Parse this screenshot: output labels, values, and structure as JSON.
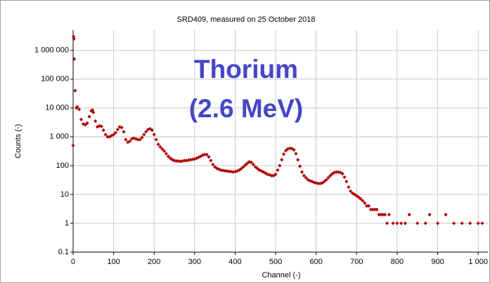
{
  "chart_data": {
    "type": "scatter",
    "title": "SRD409, measured on 25 October 2018",
    "x_label": "Channel (-)",
    "y_label": "Counts (-)",
    "annotations": [
      "Thorium",
      "(2.6 MeV)"
    ],
    "color": "#b00000",
    "yscale": "log",
    "grid": true,
    "xlim": [
      0,
      1024
    ],
    "ylim": [
      0.1,
      5000000
    ],
    "xticks": [
      0,
      100,
      200,
      300,
      400,
      500,
      600,
      700,
      800,
      900,
      {
        "value": 1000,
        "label": "1 000"
      }
    ],
    "yticks": [
      0.1,
      1,
      10,
      100,
      {
        "value": 1000,
        "label": "1 000"
      },
      {
        "value": 10000,
        "label": "10 000"
      },
      {
        "value": 100000,
        "label": "100 000"
      },
      {
        "value": 1000000,
        "label": "1 000 000"
      }
    ],
    "x": [
      0,
      1,
      2,
      3,
      5,
      8,
      10,
      15,
      20,
      25,
      30,
      35,
      40,
      45,
      48,
      50,
      55,
      60,
      65,
      70,
      75,
      80,
      85,
      90,
      95,
      100,
      105,
      110,
      115,
      120,
      125,
      130,
      135,
      140,
      145,
      150,
      155,
      160,
      165,
      170,
      175,
      180,
      185,
      190,
      195,
      200,
      205,
      210,
      215,
      220,
      225,
      230,
      235,
      240,
      245,
      250,
      255,
      260,
      265,
      270,
      275,
      280,
      285,
      290,
      295,
      300,
      305,
      310,
      315,
      320,
      325,
      330,
      335,
      340,
      345,
      350,
      355,
      360,
      365,
      370,
      375,
      380,
      385,
      390,
      395,
      400,
      405,
      410,
      415,
      420,
      425,
      430,
      435,
      440,
      445,
      450,
      455,
      460,
      465,
      470,
      475,
      480,
      485,
      490,
      495,
      500,
      505,
      510,
      515,
      520,
      525,
      530,
      535,
      540,
      545,
      550,
      555,
      560,
      565,
      570,
      575,
      580,
      585,
      590,
      595,
      600,
      605,
      610,
      615,
      620,
      625,
      630,
      635,
      640,
      645,
      650,
      655,
      660,
      665,
      670,
      675,
      680,
      685,
      690,
      695,
      700,
      705,
      710,
      715,
      720,
      725,
      730,
      735,
      740,
      745,
      750,
      755,
      760,
      765,
      770,
      775,
      780,
      790,
      800,
      810,
      820,
      830,
      850,
      870,
      880,
      900,
      920,
      940,
      960,
      980,
      1000,
      1010
    ],
    "values": [
      500,
      3000000,
      2500000,
      500000,
      40000,
      10000,
      11000,
      9000,
      4000,
      2800,
      2600,
      3000,
      5000,
      8000,
      8500,
      7000,
      3500,
      2200,
      2400,
      2300,
      1700,
      1200,
      1000,
      1000,
      1100,
      1200,
      1400,
      1800,
      2200,
      2100,
      1500,
      800,
      650,
      700,
      850,
      900,
      850,
      800,
      800,
      950,
      1200,
      1500,
      1800,
      1900,
      1700,
      1200,
      800,
      550,
      450,
      380,
      320,
      260,
      210,
      180,
      160,
      150,
      145,
      145,
      140,
      145,
      150,
      150,
      155,
      160,
      165,
      170,
      180,
      195,
      210,
      230,
      245,
      240,
      200,
      150,
      110,
      90,
      80,
      75,
      70,
      68,
      66,
      65,
      63,
      62,
      60,
      62,
      65,
      70,
      78,
      90,
      105,
      120,
      135,
      130,
      110,
      90,
      80,
      70,
      65,
      60,
      55,
      50,
      48,
      45,
      45,
      50,
      70,
      100,
      160,
      250,
      330,
      380,
      400,
      390,
      350,
      260,
      160,
      95,
      60,
      45,
      38,
      32,
      30,
      28,
      26,
      25,
      24,
      24,
      25,
      28,
      32,
      38,
      45,
      52,
      58,
      60,
      60,
      58,
      52,
      40,
      28,
      18,
      13,
      11,
      10,
      9,
      8,
      7,
      6,
      5,
      4,
      4,
      3,
      3,
      3,
      3,
      2,
      2,
      2,
      2,
      1,
      2,
      1,
      1,
      1,
      1,
      2,
      1,
      1,
      2,
      1,
      2,
      1,
      1,
      1,
      1,
      1
    ]
  }
}
